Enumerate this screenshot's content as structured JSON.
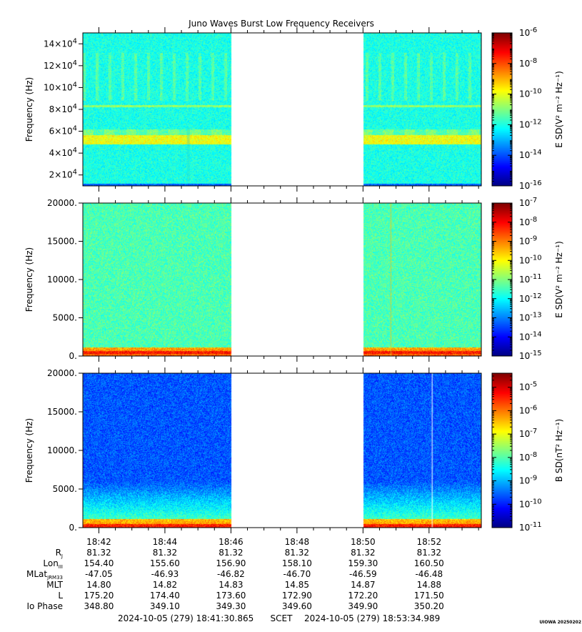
{
  "chart_data": [
    {
      "type": "heatmap",
      "title": "Juno Waves Burst Low Frequency Receivers",
      "ylabel": "Frequency (Hz)",
      "ylim": [
        10000,
        150000
      ],
      "yticks": [
        {
          "v": 20000,
          "mant": "2×10",
          "exp": "4"
        },
        {
          "v": 40000,
          "mant": "4×10",
          "exp": "4"
        },
        {
          "v": 60000,
          "mant": "6×10",
          "exp": "4"
        },
        {
          "v": 80000,
          "mant": "8×10",
          "exp": "4"
        },
        {
          "v": 100000,
          "mant": "10×10",
          "exp": "4"
        },
        {
          "v": 120000,
          "mant": "12×10",
          "exp": "4"
        },
        {
          "v": 140000,
          "mant": "14×10",
          "exp": "4"
        }
      ],
      "colorbar": {
        "label": "E SD(V² m⁻² Hz⁻¹)",
        "log_range": [
          -16,
          -6
        ],
        "ticks": [
          {
            "exp": -6,
            "text": "10",
            "sup": "-6"
          },
          {
            "exp": -8,
            "text": "10",
            "sup": "-8"
          },
          {
            "exp": -10,
            "text": "10",
            "sup": "-10"
          },
          {
            "exp": -12,
            "text": "10",
            "sup": "-12"
          },
          {
            "exp": -14,
            "text": "10",
            "sup": "-14"
          },
          {
            "exp": -16,
            "text": "10",
            "sup": "-16"
          }
        ]
      },
      "data_gap": [
        "18:46:00",
        "18:50:00"
      ],
      "features": "broad band of enhanced emission near 50-60 kHz, narrow line near 83 kHz"
    },
    {
      "type": "heatmap",
      "ylabel": "Frequency (Hz)",
      "ylim": [
        0,
        20000
      ],
      "yticks": [
        {
          "v": 0,
          "text": "0."
        },
        {
          "v": 5000,
          "text": "5000."
        },
        {
          "v": 10000,
          "text": "10000."
        },
        {
          "v": 15000,
          "text": "15000."
        },
        {
          "v": 20000,
          "text": "20000."
        }
      ],
      "colorbar": {
        "label": "E SD(V² m⁻² Hz⁻¹)",
        "log_range": [
          -15,
          -7
        ],
        "ticks": [
          {
            "exp": -7,
            "text": "10",
            "sup": "-7"
          },
          {
            "exp": -8,
            "text": "10",
            "sup": "-8"
          },
          {
            "exp": -9,
            "text": "10",
            "sup": "-9"
          },
          {
            "exp": -10,
            "text": "10",
            "sup": "-10"
          },
          {
            "exp": -11,
            "text": "10",
            "sup": "-11"
          },
          {
            "exp": -12,
            "text": "10",
            "sup": "-12"
          },
          {
            "exp": -13,
            "text": "10",
            "sup": "-13"
          },
          {
            "exp": -14,
            "text": "10",
            "sup": "-14"
          },
          {
            "exp": -15,
            "text": "10",
            "sup": "-15"
          }
        ]
      },
      "data_gap": [
        "18:46:00",
        "18:50:00"
      ],
      "features": "intense emission below ~1 kHz, impulsive broadband spike near 18:50:50"
    },
    {
      "type": "heatmap",
      "ylabel": "Frequency (Hz)",
      "ylim": [
        0,
        20000
      ],
      "yticks": [
        {
          "v": 0,
          "text": "0."
        },
        {
          "v": 5000,
          "text": "5000."
        },
        {
          "v": 10000,
          "text": "10000."
        },
        {
          "v": 15000,
          "text": "15000."
        },
        {
          "v": 20000,
          "text": "20000."
        }
      ],
      "colorbar": {
        "label": "B SD(nT² Hz⁻¹)",
        "log_range": [
          -11,
          -4.4
        ],
        "ticks": [
          {
            "exp": -5,
            "text": "10",
            "sup": "-5"
          },
          {
            "exp": -6,
            "text": "10",
            "sup": "-6"
          },
          {
            "exp": -7,
            "text": "10",
            "sup": "-7"
          },
          {
            "exp": -8,
            "text": "10",
            "sup": "-8"
          },
          {
            "exp": -9,
            "text": "10",
            "sup": "-9"
          },
          {
            "exp": -10,
            "text": "10",
            "sup": "-10"
          },
          {
            "exp": -11,
            "text": "10",
            "sup": "-11"
          }
        ]
      },
      "data_gap": [
        "18:46:00",
        "18:50:00"
      ],
      "features": "whistler-mode enhancement below ~3 kHz, white dropout line near 18:52:05"
    }
  ],
  "time_axis": {
    "range": [
      "18:41:30.865",
      "18:53:34.989"
    ],
    "ticks": [
      "18:42",
      "18:44",
      "18:46",
      "18:48",
      "18:50",
      "18:52"
    ]
  },
  "ephemeris": {
    "rows": [
      {
        "label": "R",
        "sub": "J",
        "values": [
          "81.32",
          "81.32",
          "81.32",
          "81.32",
          "81.32",
          "81.32"
        ]
      },
      {
        "label": "Lon",
        "sub": "III",
        "values": [
          "154.40",
          "155.60",
          "156.90",
          "158.10",
          "159.30",
          "160.50"
        ]
      },
      {
        "label": "MLat",
        "sub": "JRM33",
        "values": [
          "-47.05",
          "-46.93",
          "-46.82",
          "-46.70",
          "-46.59",
          "-46.48"
        ]
      },
      {
        "label": "MLT",
        "sub": "",
        "values": [
          "14.80",
          "14.82",
          "14.83",
          "14.85",
          "14.87",
          "14.88"
        ]
      },
      {
        "label": "L",
        "sub": "",
        "values": [
          "175.20",
          "174.40",
          "173.60",
          "172.90",
          "172.20",
          "171.50"
        ]
      },
      {
        "label": "Io Phase",
        "sub": "",
        "values": [
          "348.80",
          "349.10",
          "349.30",
          "349.60",
          "349.90",
          "350.20"
        ]
      }
    ]
  },
  "footer": {
    "start": "2024-10-05 (279) 18:41:30.865",
    "scet": "SCET",
    "end": "2024-10-05 (279) 18:53:34.989",
    "stamp": "UIOWA 20250202"
  }
}
